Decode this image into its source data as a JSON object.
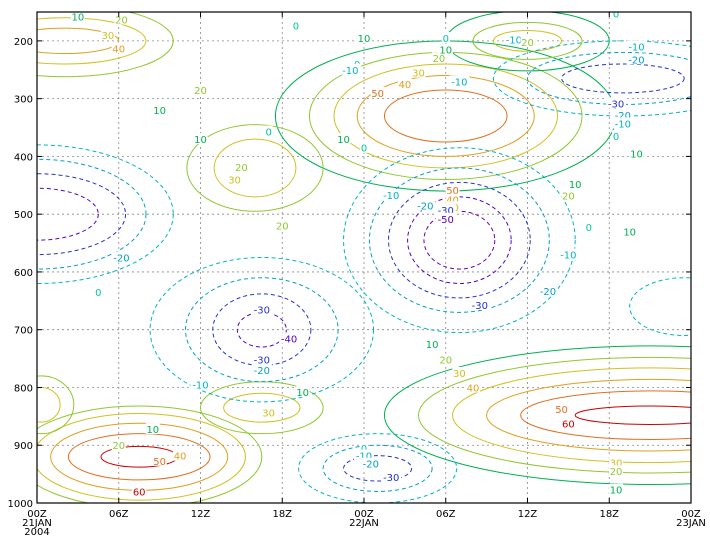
{
  "chart_data": {
    "type": "contour",
    "title": "",
    "xlabel": "",
    "ylabel": "",
    "x_ticks": [
      {
        "hours": 0,
        "lines": [
          "00Z",
          "21JAN",
          "2004"
        ]
      },
      {
        "hours": 6,
        "lines": [
          "06Z"
        ]
      },
      {
        "hours": 12,
        "lines": [
          "12Z"
        ]
      },
      {
        "hours": 18,
        "lines": [
          "18Z"
        ]
      },
      {
        "hours": 24,
        "lines": [
          "00Z",
          "22JAN"
        ]
      },
      {
        "hours": 30,
        "lines": [
          "06Z"
        ]
      },
      {
        "hours": 36,
        "lines": [
          "12Z"
        ]
      },
      {
        "hours": 42,
        "lines": [
          "18Z"
        ]
      },
      {
        "hours": 48,
        "lines": [
          "00Z",
          "23JAN"
        ]
      }
    ],
    "y_ticks": [
      "200",
      "300",
      "400",
      "500",
      "600",
      "700",
      "800",
      "900",
      "1000"
    ],
    "y_values": [
      200,
      300,
      400,
      500,
      600,
      700,
      800,
      900,
      1000
    ],
    "xlim_hours": [
      0,
      48
    ],
    "ylim": [
      150,
      1000
    ],
    "y_inverted": true,
    "grid": true,
    "contour_interval": 10,
    "negative_contours_dashed": true,
    "level_colors": {
      "-50": "#6600aa",
      "-40": "#5500cc",
      "-30": "#2233cc",
      "-20": "#00a0c8",
      "-10": "#00b4c8",
      "0": "#00c8a0",
      "10": "#00b050",
      "20": "#90c830",
      "30": "#d0c020",
      "40": "#e0a020",
      "50": "#e07020",
      "60": "#cc0000"
    },
    "features": [
      {
        "type": "max",
        "center_hours": 7.5,
        "center_p": 920,
        "peak": 60,
        "rings": [
          {
            "level": 60,
            "rh": 2.8,
            "rp": 18
          },
          {
            "level": 50,
            "rh": 5.2,
            "rp": 40
          },
          {
            "level": 40,
            "rh": 6.5,
            "rp": 58
          },
          {
            "level": 30,
            "rh": 7.8,
            "rp": 75
          },
          {
            "level": 20,
            "rh": 9.0,
            "rp": 88
          }
        ]
      },
      {
        "type": "max",
        "center_hours": 45,
        "center_p": 848,
        "peak": 60,
        "rings": [
          {
            "level": 60,
            "rh": 5.5,
            "rp": 16
          },
          {
            "level": 50,
            "rh": 9.5,
            "rp": 42
          },
          {
            "level": 40,
            "rh": 12.0,
            "rp": 62
          },
          {
            "level": 30,
            "rh": 14.5,
            "rp": 82
          },
          {
            "level": 20,
            "rh": 17.0,
            "rp": 100
          },
          {
            "level": 10,
            "rh": 19.5,
            "rp": 120
          }
        ]
      },
      {
        "type": "max",
        "center_hours": 30,
        "center_p": 330,
        "peak": 50,
        "rings": [
          {
            "level": 50,
            "rh": 4.5,
            "rp": 45
          },
          {
            "level": 40,
            "rh": 6.5,
            "rp": 70
          },
          {
            "level": 30,
            "rh": 8.2,
            "rp": 90
          },
          {
            "level": 20,
            "rh": 10.0,
            "rp": 110
          },
          {
            "level": 10,
            "rh": 12.5,
            "rp": 130
          }
        ]
      },
      {
        "type": "max",
        "center_hours": 2,
        "center_p": 200,
        "peak": 40,
        "rings": [
          {
            "level": 40,
            "rh": 4.0,
            "rp": 22
          },
          {
            "level": 30,
            "rh": 6.0,
            "rp": 40
          },
          {
            "level": 20,
            "rh": 8.0,
            "rp": 62
          }
        ]
      },
      {
        "type": "max",
        "center_hours": 16,
        "center_p": 420,
        "peak": 30,
        "rings": [
          {
            "level": 30,
            "rh": 3.0,
            "rp": 50
          },
          {
            "level": 20,
            "rh": 5.0,
            "rp": 75
          }
        ]
      },
      {
        "type": "max",
        "center_hours": 16.5,
        "center_p": 835,
        "peak": 30,
        "rings": [
          {
            "level": 30,
            "rh": 2.8,
            "rp": 25
          },
          {
            "level": 20,
            "rh": 4.5,
            "rp": 45
          }
        ]
      },
      {
        "type": "max",
        "center_hours": 36,
        "center_p": 200,
        "peak": 30,
        "rings": [
          {
            "level": 30,
            "rh": 2.5,
            "rp": 18
          },
          {
            "level": 20,
            "rh": 4.0,
            "rp": 32
          },
          {
            "level": 10,
            "rh": 6.0,
            "rp": 52
          }
        ]
      },
      {
        "type": "max",
        "center_hours": 0.3,
        "center_p": 830,
        "peak": 30,
        "rings": [
          {
            "level": 30,
            "rh": 1.4,
            "rp": 30
          },
          {
            "level": 20,
            "rh": 2.4,
            "rp": 50
          }
        ]
      },
      {
        "type": "min",
        "center_hours": 31,
        "center_p": 545,
        "peak": -50,
        "rings": [
          {
            "level": -50,
            "rh": 2.6,
            "rp": 50
          },
          {
            "level": -40,
            "rh": 3.8,
            "rp": 75
          },
          {
            "level": -30,
            "rh": 5.2,
            "rp": 100
          },
          {
            "level": -20,
            "rh": 6.6,
            "rp": 125
          },
          {
            "level": -10,
            "rh": 8.5,
            "rp": 160
          }
        ]
      },
      {
        "type": "min",
        "center_hours": 16.5,
        "center_p": 700,
        "peak": -40,
        "rings": [
          {
            "level": -40,
            "rh": 1.8,
            "rp": 30
          },
          {
            "level": -30,
            "rh": 3.6,
            "rp": 62
          },
          {
            "level": -20,
            "rh": 5.6,
            "rp": 90
          },
          {
            "level": -10,
            "rh": 8.2,
            "rp": 125
          }
        ]
      },
      {
        "type": "min",
        "center_hours": 0,
        "center_p": 500,
        "peak": -50,
        "rings": [
          {
            "level": -40,
            "rh": 4.5,
            "rp": 45
          },
          {
            "level": -30,
            "rh": 6.5,
            "rp": 70
          },
          {
            "level": -20,
            "rh": 8.0,
            "rp": 95
          },
          {
            "level": -10,
            "rh": 10.0,
            "rp": 120
          }
        ]
      },
      {
        "type": "min",
        "center_hours": 25,
        "center_p": 940,
        "peak": -30,
        "rings": [
          {
            "level": -30,
            "rh": 2.5,
            "rp": 22
          },
          {
            "level": -20,
            "rh": 4.0,
            "rp": 40
          },
          {
            "level": -10,
            "rh": 5.8,
            "rp": 60
          }
        ]
      },
      {
        "type": "min",
        "center_hours": 43,
        "center_p": 265,
        "peak": -30,
        "rings": [
          {
            "level": -30,
            "rh": 4.5,
            "rp": 25
          },
          {
            "level": -20,
            "rh": 7.0,
            "rp": 45
          },
          {
            "level": -10,
            "rh": 9.5,
            "rp": 65
          }
        ]
      },
      {
        "type": "min",
        "center_hours": 47.5,
        "center_p": 660,
        "peak": -10,
        "rings": [
          {
            "level": -10,
            "rh": 4.0,
            "rp": 50
          }
        ]
      }
    ],
    "labels": [
      {
        "text": "10",
        "hours": 3.0,
        "p": 158,
        "level": 10
      },
      {
        "text": "20",
        "hours": 6.2,
        "p": 163,
        "level": 20
      },
      {
        "text": "30",
        "hours": 5.2,
        "p": 190,
        "level": 30
      },
      {
        "text": "40",
        "hours": 6.0,
        "p": 213,
        "level": 40
      },
      {
        "text": "20",
        "hours": 12.0,
        "p": 285,
        "level": 20
      },
      {
        "text": "10",
        "hours": 9.0,
        "p": 320,
        "level": 10
      },
      {
        "text": "10",
        "hours": 12.0,
        "p": 370,
        "level": 10
      },
      {
        "text": "0",
        "hours": 17.0,
        "p": 357,
        "level": 0
      },
      {
        "text": "20",
        "hours": 15.0,
        "p": 418,
        "level": 20
      },
      {
        "text": "30",
        "hours": 14.5,
        "p": 440,
        "level": 30
      },
      {
        "text": "20",
        "hours": 18.0,
        "p": 520,
        "level": 20
      },
      {
        "text": "0",
        "hours": 19.0,
        "p": 173,
        "level": 0
      },
      {
        "text": "10",
        "hours": 24.0,
        "p": 195,
        "level": 10
      },
      {
        "text": "0",
        "hours": 23.5,
        "p": 240,
        "level": 0
      },
      {
        "text": "-10",
        "hours": 23.0,
        "p": 250,
        "level": -10
      },
      {
        "text": "-10",
        "hours": 31.0,
        "p": 270,
        "level": -10
      },
      {
        "text": "50",
        "hours": 25.0,
        "p": 290,
        "level": 50
      },
      {
        "text": "40",
        "hours": 27.0,
        "p": 275,
        "level": 40
      },
      {
        "text": "30",
        "hours": 28.0,
        "p": 255,
        "level": 30
      },
      {
        "text": "20",
        "hours": 29.5,
        "p": 230,
        "level": 20
      },
      {
        "text": "10",
        "hours": 30.0,
        "p": 215,
        "level": 10
      },
      {
        "text": "0",
        "hours": 30.0,
        "p": 195,
        "level": 0
      },
      {
        "text": "10",
        "hours": 22.5,
        "p": 370,
        "level": 10
      },
      {
        "text": "0",
        "hours": 24.0,
        "p": 385,
        "level": 0
      },
      {
        "text": "50",
        "hours": 30.5,
        "p": 458,
        "level": 50
      },
      {
        "text": "40",
        "hours": 30.5,
        "p": 475,
        "level": 40
      },
      {
        "text": "30",
        "hours": 30.5,
        "p": 488,
        "level": 30
      },
      {
        "text": "-10",
        "hours": 26.0,
        "p": 467,
        "level": -10
      },
      {
        "text": "-20",
        "hours": 28.5,
        "p": 485,
        "level": -20
      },
      {
        "text": "-30",
        "hours": 30.0,
        "p": 493,
        "level": -30
      },
      {
        "text": "-50",
        "hours": 30.0,
        "p": 508,
        "level": -50
      },
      {
        "text": "-30",
        "hours": 32.5,
        "p": 657,
        "level": -30
      },
      {
        "text": "10",
        "hours": 39.5,
        "p": 448,
        "level": 10
      },
      {
        "text": "20",
        "hours": 39.0,
        "p": 468,
        "level": 20
      },
      {
        "text": "10",
        "hours": 43.5,
        "p": 530,
        "level": 10
      },
      {
        "text": "0",
        "hours": 40.5,
        "p": 522,
        "level": 0
      },
      {
        "text": "-10",
        "hours": 39.0,
        "p": 570,
        "level": -10
      },
      {
        "text": "-20",
        "hours": 37.5,
        "p": 633,
        "level": -20
      },
      {
        "text": "0",
        "hours": 42.5,
        "p": 153,
        "level": 0
      },
      {
        "text": "-10",
        "hours": 35.0,
        "p": 198,
        "level": -10
      },
      {
        "text": "20",
        "hours": 36.0,
        "p": 202,
        "level": 20
      },
      {
        "text": "-10",
        "hours": 44.0,
        "p": 210,
        "level": -10
      },
      {
        "text": "-20",
        "hours": 44.0,
        "p": 232,
        "level": -20
      },
      {
        "text": "-30",
        "hours": 42.5,
        "p": 308,
        "level": -30
      },
      {
        "text": "-20",
        "hours": 43.0,
        "p": 328,
        "level": -20
      },
      {
        "text": "-10",
        "hours": 43.0,
        "p": 343,
        "level": -10
      },
      {
        "text": "0",
        "hours": 42.5,
        "p": 365,
        "level": 0
      },
      {
        "text": "10",
        "hours": 44.0,
        "p": 395,
        "level": 10
      },
      {
        "text": "-20",
        "hours": 6.2,
        "p": 575,
        "level": -20
      },
      {
        "text": "0",
        "hours": 4.5,
        "p": 635,
        "level": 0
      },
      {
        "text": "-30",
        "hours": 16.5,
        "p": 665,
        "level": -30
      },
      {
        "text": "-40",
        "hours": 18.5,
        "p": 715,
        "level": -40
      },
      {
        "text": "-30",
        "hours": 16.5,
        "p": 752,
        "level": -30
      },
      {
        "text": "-20",
        "hours": 16.5,
        "p": 770,
        "level": -20
      },
      {
        "text": "-10",
        "hours": 12.0,
        "p": 795,
        "level": -10
      },
      {
        "text": "10",
        "hours": 19.5,
        "p": 808,
        "level": 10
      },
      {
        "text": "30",
        "hours": 17.0,
        "p": 843,
        "level": 30
      },
      {
        "text": "10",
        "hours": 8.5,
        "p": 872,
        "level": 10
      },
      {
        "text": "20",
        "hours": 6.0,
        "p": 900,
        "level": 20
      },
      {
        "text": "50",
        "hours": 9.0,
        "p": 927,
        "level": 50
      },
      {
        "text": "40",
        "hours": 10.5,
        "p": 918,
        "level": 40
      },
      {
        "text": "60",
        "hours": 7.5,
        "p": 980,
        "level": 60
      },
      {
        "text": "40",
        "hours": 7.2,
        "p": 1015,
        "level": 40
      },
      {
        "text": "10",
        "hours": 29.0,
        "p": 725,
        "level": 10
      },
      {
        "text": "20",
        "hours": 30.0,
        "p": 752,
        "level": 20
      },
      {
        "text": "30",
        "hours": 31.0,
        "p": 775,
        "level": 30
      },
      {
        "text": "40",
        "hours": 32.0,
        "p": 800,
        "level": 40
      },
      {
        "text": "50",
        "hours": 38.5,
        "p": 837,
        "level": 50
      },
      {
        "text": "60",
        "hours": 39.0,
        "p": 862,
        "level": 60
      },
      {
        "text": "30",
        "hours": 42.5,
        "p": 930,
        "level": 30
      },
      {
        "text": "20",
        "hours": 42.5,
        "p": 945,
        "level": 20
      },
      {
        "text": "10",
        "hours": 42.5,
        "p": 977,
        "level": 10
      },
      {
        "text": "0",
        "hours": 24.0,
        "p": 905,
        "level": 0
      },
      {
        "text": "-10",
        "hours": 24.0,
        "p": 918,
        "level": -10
      },
      {
        "text": "-20",
        "hours": 24.5,
        "p": 932,
        "level": -20
      },
      {
        "text": "-30",
        "hours": 26.0,
        "p": 955,
        "level": -30
      },
      {
        "text": "-20",
        "hours": 25.0,
        "p": 1005,
        "level": -20
      }
    ]
  }
}
